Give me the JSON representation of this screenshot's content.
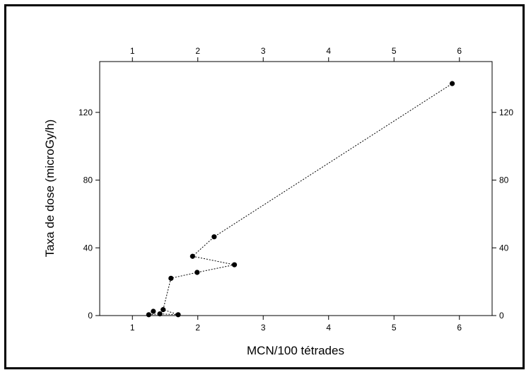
{
  "chart_data": {
    "type": "scatter",
    "title": "",
    "xlabel": "MCN/100 tétrades",
    "ylabel": "Taxa de dose (microGy/h)",
    "xlim": [
      0.5,
      6.5
    ],
    "ylim": [
      0,
      150
    ],
    "x_ticks": [
      "1",
      "2",
      "3",
      "4",
      "5",
      "6"
    ],
    "y_ticks": [
      "0",
      "40",
      "80",
      "120"
    ],
    "x_tick_values": [
      1,
      2,
      3,
      4,
      5,
      6
    ],
    "y_tick_values": [
      0,
      40,
      80,
      120
    ],
    "mirror_axes": true,
    "grid": false,
    "connected_with_dotted_line": true,
    "points": [
      {
        "x": 1.25,
        "y": 0.5
      },
      {
        "x": 1.32,
        "y": 2.5
      },
      {
        "x": 1.42,
        "y": 1.0
      },
      {
        "x": 1.47,
        "y": 3.5
      },
      {
        "x": 1.7,
        "y": 0.5
      },
      {
        "x": 1.59,
        "y": 22
      },
      {
        "x": 1.99,
        "y": 25.5
      },
      {
        "x": 2.56,
        "y": 30
      },
      {
        "x": 1.92,
        "y": 35
      },
      {
        "x": 2.25,
        "y": 46.5
      },
      {
        "x": 5.89,
        "y": 137
      }
    ],
    "line_order": [
      {
        "x": 1.25,
        "y": 0.5
      },
      {
        "x": 1.42,
        "y": 1.0
      },
      {
        "x": 1.7,
        "y": 0.5
      },
      {
        "x": 1.47,
        "y": 3.5
      },
      {
        "x": 1.59,
        "y": 22
      },
      {
        "x": 1.99,
        "y": 25.5
      },
      {
        "x": 2.56,
        "y": 30
      },
      {
        "x": 1.92,
        "y": 35
      },
      {
        "x": 2.25,
        "y": 46.5
      },
      {
        "x": 5.89,
        "y": 137
      }
    ]
  }
}
